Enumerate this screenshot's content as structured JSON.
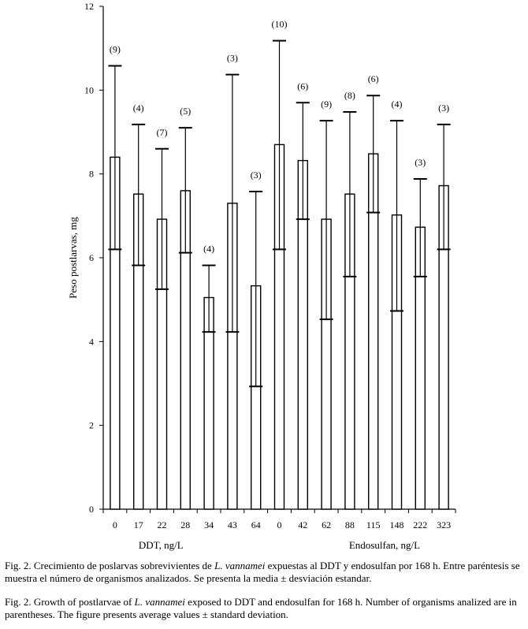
{
  "chart_data": {
    "type": "bar",
    "ylabel": "Peso postlarvas, mg",
    "ylim": [
      0,
      12
    ],
    "yticks": [
      "0",
      "2",
      "4",
      "6",
      "8",
      "10",
      "12"
    ],
    "categories": [
      "0",
      "17",
      "22",
      "28",
      "34",
      "43",
      "64",
      "0",
      "42",
      "62",
      "88",
      "115",
      "148",
      "222",
      "323"
    ],
    "groups": [
      {
        "label": "DDT, ng/L",
        "categories_range": [
          0,
          6
        ]
      },
      {
        "label": "Endosulfan, ng/L",
        "categories_range": [
          7,
          14
        ]
      }
    ],
    "series": [
      {
        "values": [
          8.4,
          7.52,
          6.92,
          7.6,
          5.05,
          7.3,
          5.33,
          8.7,
          8.32,
          6.92,
          7.52,
          8.48,
          7.02,
          6.73,
          7.72
        ],
        "upper": [
          10.58,
          9.18,
          8.6,
          9.1,
          5.82,
          10.37,
          7.58,
          11.18,
          9.7,
          9.27,
          9.48,
          9.87,
          9.27,
          7.88,
          9.18
        ],
        "lower": [
          6.2,
          5.82,
          5.25,
          6.12,
          4.23,
          4.23,
          2.93,
          6.2,
          6.92,
          4.53,
          5.55,
          7.08,
          4.73,
          5.55,
          6.2
        ],
        "n_labels": [
          "(9)",
          "(4)",
          "(7)",
          "(5)",
          "(4)",
          "(3)",
          "(3)",
          "(10)",
          "(6)",
          "(9)",
          "(8)",
          "(6)",
          "(4)",
          "(3)",
          "(3)"
        ]
      }
    ]
  },
  "caption": {
    "es_prefix": "Fig. 2. Crecimiento de poslarvas sobrevivientes de ",
    "es_species": "L. vannamei",
    "es_suffix": " expuestas al DDT y endosulfan por 168 h. Entre paréntesis se muestra el número de organismos analizados. Se presenta la media ± desviación estandar.",
    "en_prefix": "Fig. 2. Growth of postlarvae of ",
    "en_species": "L. vannamei",
    "en_suffix": " exposed to DDT  and endosulfan for 168 h. Number of organisms analized are in parentheses. The figure presents average values ± standard deviation."
  }
}
